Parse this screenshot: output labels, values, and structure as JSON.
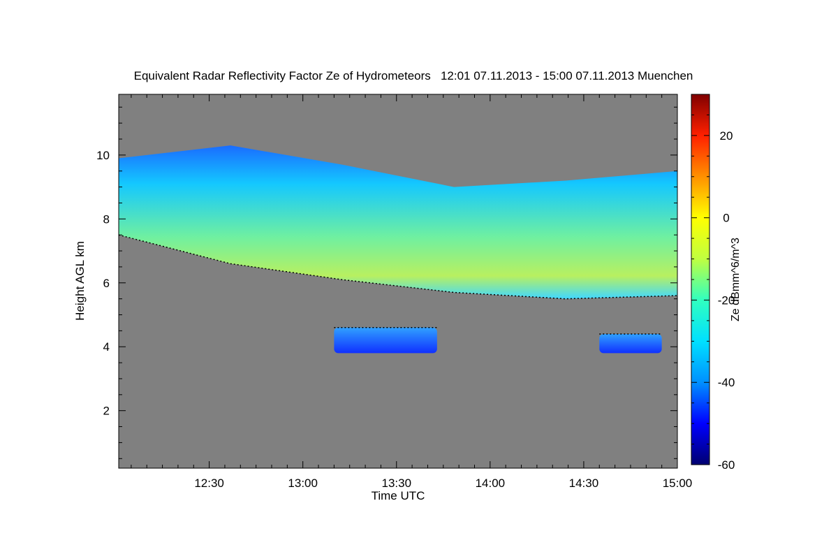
{
  "chart_data": {
    "type": "heatmap",
    "title": "Equivalent Radar Reflectivity Factor Ze of Hydrometeors   12:01 07.11.2013 - 15:00 07.11.2013 Muenchen",
    "xlabel": "Time UTC",
    "ylabel": "Height AGL km",
    "xlim": [
      "12:01",
      "15:00"
    ],
    "ylim": [
      0.2,
      11.9
    ],
    "x_ticks": [
      "12:30",
      "13:00",
      "13:30",
      "14:00",
      "14:30",
      "15:00"
    ],
    "y_ticks": [
      "2",
      "4",
      "6",
      "8",
      "10"
    ],
    "colorbar": {
      "label": "Ze dBmm^6/m^3",
      "range": [
        -60,
        30
      ],
      "ticks": [
        "-60",
        "-40",
        "-20",
        "0",
        "20"
      ],
      "colors": [
        "#000070",
        "#0000ff",
        "#0090ff",
        "#00e0ff",
        "#30ffc0",
        "#c0ff40",
        "#ffff00",
        "#ff9000",
        "#ff2000",
        "#800000"
      ]
    },
    "background_color": "#808080",
    "features": [
      {
        "name": "main cloud layer",
        "start": "12:01",
        "end": "15:00",
        "top_km": [
          9.9,
          10.3,
          9.7,
          9.0,
          9.2,
          9.5
        ],
        "base_km": [
          7.5,
          6.6,
          6.1,
          5.7,
          5.5,
          5.6
        ],
        "max_ze": -15
      },
      {
        "name": "mid-level layer",
        "start": "13:10",
        "end": "13:43",
        "top_km": 4.6,
        "base_km": 3.8,
        "max_ze": -40
      },
      {
        "name": "mid-level layer",
        "start": "14:35",
        "end": "14:55",
        "top_km": 4.4,
        "base_km": 3.8,
        "max_ze": -40
      }
    ]
  }
}
